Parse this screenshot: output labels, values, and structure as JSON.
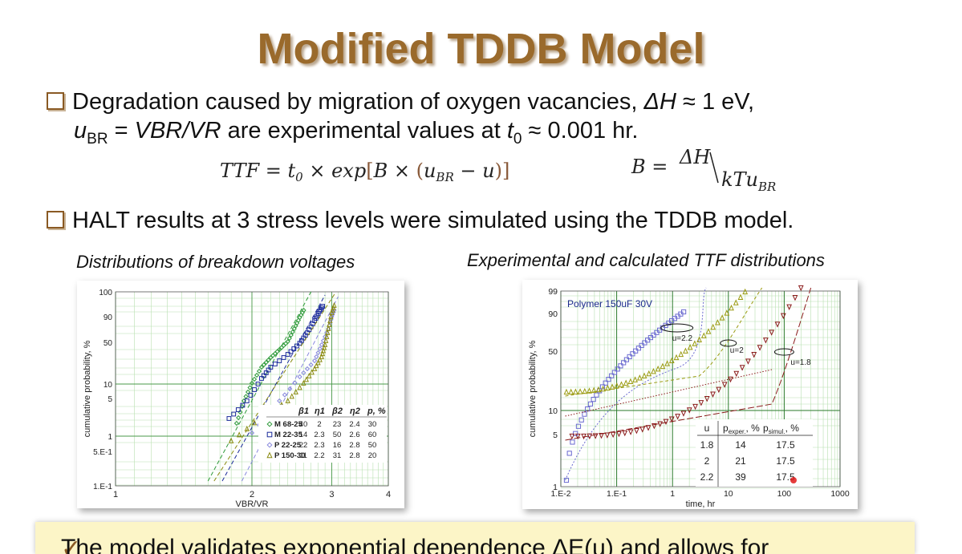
{
  "title": "Modified TDDB Model",
  "bullet1": {
    "line1_a": "Degradation caused by migration of oxygen vacancies, ",
    "line1_dh": "ΔH",
    "line1_b": " ≈ 1 eV,",
    "line2_u": "u",
    "line2_sub": "BR",
    "line2_a": " = ",
    "line2_vbr": "VBR/VR",
    "line2_b": " are experimental values at ",
    "line2_t": "t",
    "line2_t0": "0",
    "line2_c": " ≈ 0.001 hr."
  },
  "formula1": "TTF = t₀ × exp[B × (u_BR − u)]",
  "formula2": "B = ΔH/kTu_BR",
  "bullet2": "HALT results at 3 stress levels were simulated using the TDDB model.",
  "caption_left": "Distributions of breakdown voltages",
  "caption_right": "Experimental and calculated TTF distributions",
  "bottom_text": "The model validates exponential dependence ΔE(u) and allows for",
  "chart_data": [
    {
      "type": "scatter",
      "xlabel": "VBR/VR",
      "ylabel": "cumulative probability, %",
      "x_ticks": [
        "1",
        "2",
        "3",
        "4"
      ],
      "y_ticks": [
        "100",
        "90",
        "50",
        "10",
        "5",
        "1",
        "5.E-1",
        "1.E-1"
      ],
      "x_scale": "log",
      "xlim": [
        1,
        4
      ],
      "grid": true,
      "legend": {
        "columns": [
          "",
          "β1",
          "η1",
          "β2",
          "η2",
          "p, %"
        ],
        "rows": [
          {
            "name": "M 68-25",
            "b1": "40",
            "e1": "2",
            "b2": "23",
            "e2": "2.4",
            "p": "30",
            "color": "#2e9a3a",
            "marker": "diamond"
          },
          {
            "name": "M 22-35",
            "b1": "14",
            "e1": "2.3",
            "b2": "50",
            "e2": "2.6",
            "p": "60",
            "color": "#1a2a9a",
            "marker": "square"
          },
          {
            "name": "P 22-25",
            "b1": "22",
            "e1": "2.3",
            "b2": "16",
            "e2": "2.8",
            "p": "50",
            "color": "#8888dd",
            "marker": "diamond"
          },
          {
            "name": "P 150-30",
            "b1": "11",
            "e1": "2.2",
            "b2": "31",
            "e2": "2.8",
            "p": "20",
            "color": "#8a8a10",
            "marker": "triangle"
          }
        ]
      }
    },
    {
      "type": "scatter",
      "title": "Polymer 150uF 30V",
      "xlabel": "time, hr",
      "ylabel": "cumulative probability, %",
      "x_ticks": [
        "1.E-2",
        "1.E-1",
        "1",
        "10",
        "100",
        "1000"
      ],
      "y_ticks": [
        "99",
        "90",
        "50",
        "10",
        "5",
        "1"
      ],
      "x_scale": "log",
      "xlim": [
        0.01,
        1000
      ],
      "grid": true,
      "annotations": [
        "u=2.2",
        "u=2",
        "u=1.8"
      ],
      "table": {
        "headers": [
          "u",
          "pexper, %",
          "psimul, %"
        ],
        "rows": [
          [
            "1.8",
            "14",
            "17.5"
          ],
          [
            "2",
            "21",
            "17.5"
          ],
          [
            "2.2",
            "39",
            "17.5"
          ]
        ]
      },
      "series": [
        {
          "name": "u=2.2",
          "color": "#6a6ad0"
        },
        {
          "name": "u=2",
          "color": "#9a9a10"
        },
        {
          "name": "u=1.8",
          "color": "#8a1a1a"
        }
      ]
    }
  ]
}
